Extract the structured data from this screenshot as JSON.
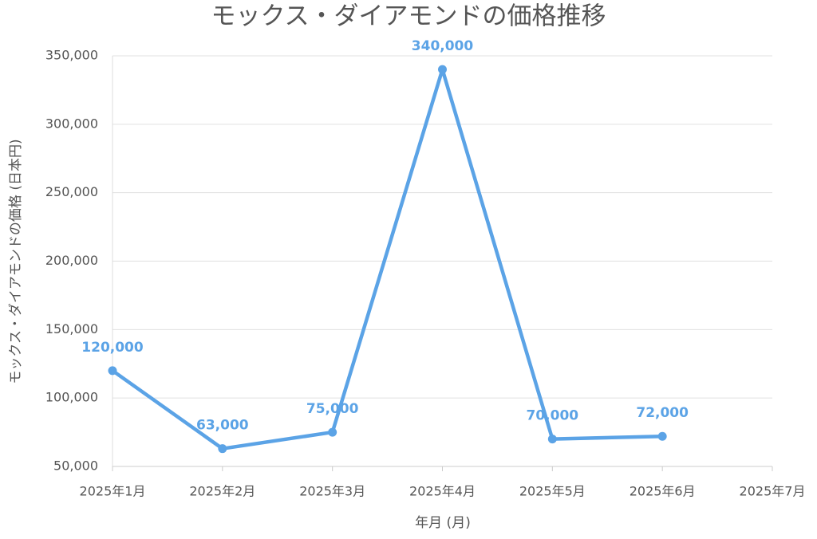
{
  "chart_data": {
    "type": "line",
    "title": "モックス・ダイアモンドの価格推移",
    "x_label": "年月 (月)",
    "y_label": "モックス・ダイアモンドの価格 (日本円)",
    "categories": [
      "2025年1月",
      "2025年2月",
      "2025年3月",
      "2025年4月",
      "2025年5月",
      "2025年6月",
      "2025年7月"
    ],
    "series": [
      {
        "name": "価格",
        "color": "#5ba3e6",
        "values": [
          120000,
          63000,
          75000,
          340000,
          70000,
          72000,
          null
        ],
        "value_labels": [
          "120,000",
          "63,000",
          "75,000",
          "340,000",
          "70,000",
          "72,000",
          null
        ]
      }
    ],
    "ylim": [
      50000,
      350000
    ],
    "yticks": [
      {
        "value": 50000,
        "label": "50,000"
      },
      {
        "value": 100000,
        "label": "100,000"
      },
      {
        "value": 150000,
        "label": "150,000"
      },
      {
        "value": 200000,
        "label": "200,000"
      },
      {
        "value": 250000,
        "label": "250,000"
      },
      {
        "value": 300000,
        "label": "300,000"
      },
      {
        "value": 350000,
        "label": "350,000"
      }
    ],
    "grid": true
  }
}
